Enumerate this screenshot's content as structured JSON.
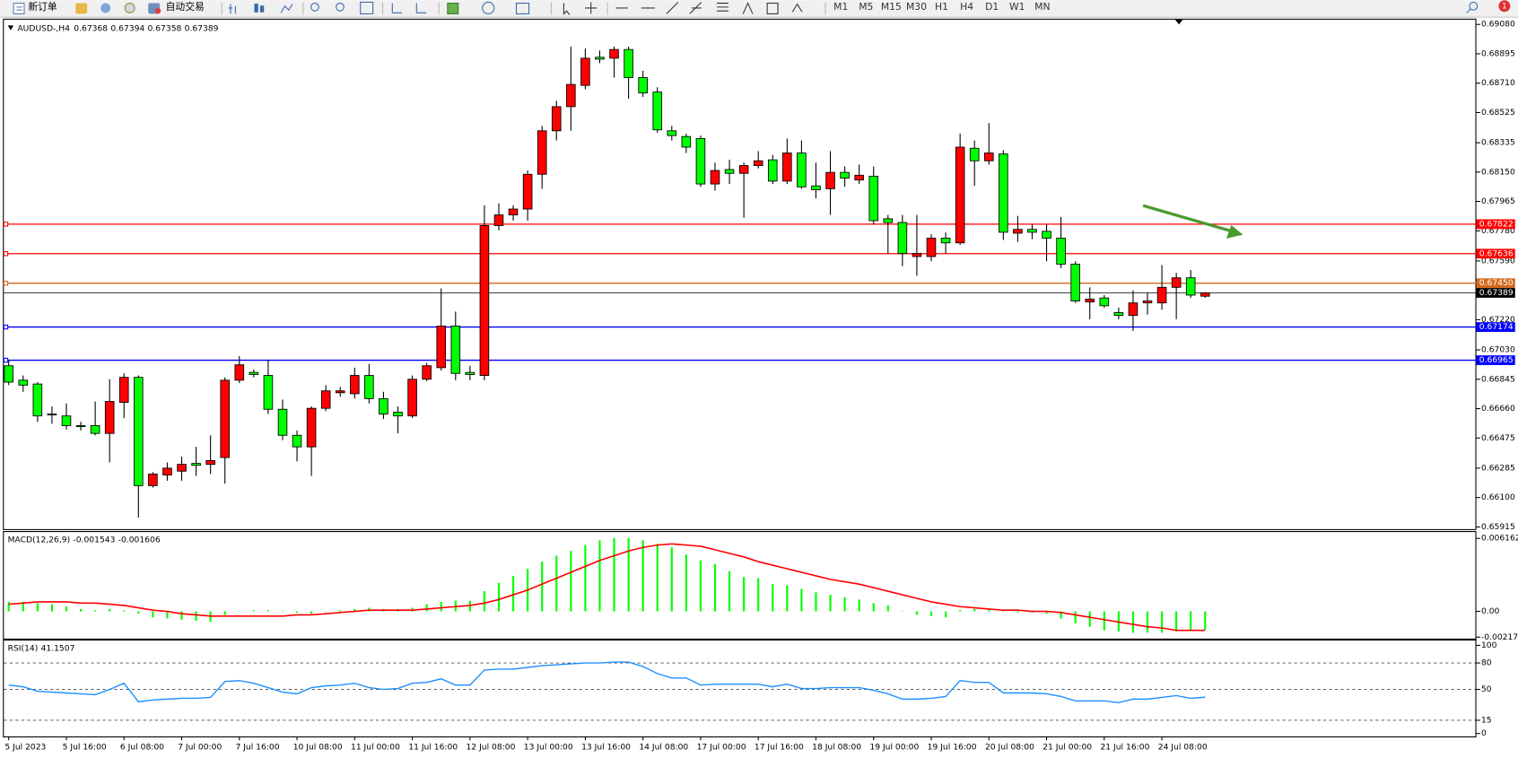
{
  "toolbar": {
    "new_order": "新订单",
    "auto_trading": "自动交易",
    "timeframes": [
      "M1",
      "M5",
      "M15",
      "M30",
      "H1",
      "H4",
      "D1",
      "W1",
      "MN"
    ],
    "notification_count": 1
  },
  "chart_data": [
    {
      "type": "candlestick",
      "title": "AUDUSD-,H4",
      "up_color": "#ff0000",
      "down_color": "#00ff00",
      "categories": [
        "5 Jul 2023",
        null,
        null,
        null,
        "5 Jul 16:00",
        null,
        null,
        null,
        "6 Jul 08:00",
        null,
        null,
        null,
        "7 Jul 00:00",
        null,
        null,
        null,
        "7 Jul 16:00",
        null,
        null,
        null,
        "10 Jul 08:00",
        null,
        null,
        null,
        "11 Jul 00:00",
        null,
        null,
        null,
        "11 Jul 16:00",
        null,
        null,
        null,
        "12 Jul 08:00",
        null,
        null,
        null,
        "13 Jul 00:00",
        null,
        null,
        null,
        "13 Jul 16:00",
        null,
        null,
        null,
        "14 Jul 08:00",
        null,
        null,
        null,
        "17 Jul 00:00",
        null,
        null,
        null,
        "17 Jul 16:00",
        null,
        null,
        null,
        "18 Jul 08:00",
        null,
        null,
        null,
        "19 Jul 00:00",
        null,
        null,
        null,
        "19 Jul 16:00",
        null,
        null,
        null,
        "20 Jul 08:00",
        null,
        null,
        null,
        "21 Jul 00:00",
        null,
        null,
        null,
        "21 Jul 16:00",
        null,
        null,
        null,
        "24 Jul 08:00",
        null,
        null,
        null
      ],
      "open": [
        0.6693,
        0.66839,
        0.66815,
        0.66626,
        0.66614,
        0.66553,
        0.66553,
        0.66504,
        0.66699,
        0.66857,
        0.66175,
        0.66242,
        0.66266,
        0.66315,
        0.66309,
        0.66352,
        0.66839,
        0.66888,
        0.66869,
        0.66656,
        0.66492,
        0.66419,
        0.66662,
        0.6676,
        0.66754,
        0.66869,
        0.66723,
        0.66638,
        0.66614,
        0.66845,
        0.66918,
        0.6718,
        0.66888,
        0.66869,
        0.67813,
        0.6788,
        0.67917,
        0.68136,
        0.6841,
        0.68562,
        0.68696,
        0.68873,
        0.68867,
        0.68922,
        0.68745,
        0.68654,
        0.6841,
        0.68374,
        0.68361,
        0.68075,
        0.68166,
        0.68142,
        0.68191,
        0.68227,
        0.68093,
        0.6827,
        0.68063,
        0.68045,
        0.68148,
        0.681,
        0.68124,
        0.67856,
        0.67832,
        0.67618,
        0.67618,
        0.67734,
        0.67704,
        0.683,
        0.68221,
        0.68264,
        0.67765,
        0.67789,
        0.67777,
        0.67734,
        0.6757,
        0.67332,
        0.67357,
        0.67265,
        0.67247,
        0.67326,
        0.67326,
        0.67424,
        0.67484,
        0.67368
      ],
      "high": [
        0.66967,
        0.66869,
        0.66827,
        0.66674,
        0.66693,
        0.66577,
        0.66705,
        0.66845,
        0.66882,
        0.66869,
        0.6626,
        0.66321,
        0.66358,
        0.66419,
        0.66492,
        0.66857,
        0.66991,
        0.66906,
        0.66967,
        0.66717,
        0.66522,
        0.66674,
        0.66808,
        0.66796,
        0.66918,
        0.66942,
        0.66766,
        0.66674,
        0.66869,
        0.66948,
        0.67417,
        0.67271,
        0.6693,
        0.67941,
        0.67953,
        0.67941,
        0.6816,
        0.68441,
        0.68599,
        0.6894,
        0.68928,
        0.68916,
        0.6894,
        0.6894,
        0.68788,
        0.68684,
        0.68441,
        0.68392,
        0.6838,
        0.68209,
        0.68227,
        0.68209,
        0.68282,
        0.68258,
        0.68361,
        0.68349,
        0.68209,
        0.68282,
        0.68185,
        0.68197,
        0.68185,
        0.6788,
        0.6788,
        0.6788,
        0.67758,
        0.67771,
        0.68392,
        0.68349,
        0.68459,
        0.68288,
        0.67874,
        0.67819,
        0.67819,
        0.67868,
        0.67588,
        0.67424,
        0.67375,
        0.67296,
        0.67405,
        0.67393,
        0.67564,
        0.67515,
        0.67533,
        0.67394
      ],
      "low": [
        0.66808,
        0.66766,
        0.66577,
        0.66565,
        0.66528,
        0.66522,
        0.66492,
        0.66321,
        0.66601,
        0.65974,
        0.66163,
        0.66206,
        0.66206,
        0.66236,
        0.66248,
        0.66187,
        0.66821,
        0.66857,
        0.66626,
        0.66461,
        0.66327,
        0.66236,
        0.66644,
        0.66735,
        0.66723,
        0.66693,
        0.66595,
        0.66504,
        0.66601,
        0.66833,
        0.669,
        0.66839,
        0.66839,
        0.66839,
        0.67783,
        0.67844,
        0.67844,
        0.68045,
        0.68349,
        0.6841,
        0.68672,
        0.68836,
        0.68745,
        0.68611,
        0.68623,
        0.68398,
        0.68349,
        0.6827,
        0.68057,
        0.68033,
        0.68075,
        0.67862,
        0.68173,
        0.68075,
        0.68075,
        0.68045,
        0.67984,
        0.6788,
        0.68057,
        0.68075,
        0.67819,
        0.67637,
        0.67557,
        0.67497,
        0.67588,
        0.67637,
        0.67691,
        0.68063,
        0.68197,
        0.67722,
        0.6771,
        0.67728,
        0.67588,
        0.67545,
        0.67326,
        0.67223,
        0.67296,
        0.67223,
        0.67149,
        0.67253,
        0.67283,
        0.67223,
        0.67357,
        0.67358
      ],
      "close": [
        0.66827,
        0.66808,
        0.66614,
        0.6662,
        0.66553,
        0.66547,
        0.66504,
        0.66705,
        0.66857,
        0.66175,
        0.66248,
        0.66285,
        0.66309,
        0.66303,
        0.66333,
        0.66839,
        0.66936,
        0.66875,
        0.66656,
        0.66492,
        0.66419,
        0.66662,
        0.66772,
        0.66772,
        0.66869,
        0.66723,
        0.66626,
        0.66614,
        0.66845,
        0.6693,
        0.6718,
        0.66882,
        0.66875,
        0.67813,
        0.6788,
        0.67917,
        0.68136,
        0.6841,
        0.68562,
        0.68702,
        0.68867,
        0.68861,
        0.68922,
        0.68745,
        0.68648,
        0.68416,
        0.6838,
        0.68307,
        0.68075,
        0.6816,
        0.68142,
        0.68191,
        0.68221,
        0.68093,
        0.6827,
        0.68057,
        0.68039,
        0.68148,
        0.68112,
        0.6813,
        0.67844,
        0.67832,
        0.67637,
        0.67637,
        0.67734,
        0.67704,
        0.68307,
        0.68221,
        0.6827,
        0.67771,
        0.67789,
        0.67771,
        0.67734,
        0.6757,
        0.67338,
        0.6735,
        0.67308,
        0.67247,
        0.67326,
        0.67338,
        0.67424,
        0.67484,
        0.67375,
        0.67389
      ],
      "hlines": [
        {
          "value": 0.67822,
          "color": "#ff0000"
        },
        {
          "value": 0.67636,
          "color": "#ff0000"
        },
        {
          "value": 0.6745,
          "label": "0.67450",
          "color": "#d2691e"
        },
        {
          "value": 0.67174,
          "color": "#0000ff"
        },
        {
          "value": 0.66965,
          "color": "#0000ff"
        }
      ],
      "ylim": [
        0.65901,
        0.6911
      ],
      "yticks": [
        {
          "value": 0.6908,
          "label": "0.69080"
        },
        0.68895,
        {
          "value": 0.6871,
          "label": "0.68710"
        },
        0.68525,
        0.68335,
        {
          "value": 0.6815,
          "label": "0.68150"
        },
        0.67965,
        {
          "value": 0.6778,
          "label": "0.67780"
        },
        {
          "value": 0.6759,
          "label": "0.67590"
        },
        {
          "value": 0.6722,
          "label": "0.67220"
        },
        {
          "value": 0.6703,
          "label": "0.67030"
        },
        0.66845,
        {
          "value": 0.6666,
          "label": "0.66660"
        },
        0.66475,
        0.66285,
        {
          "value": 0.661,
          "label": "0.66100"
        },
        0.65915
      ]
    },
    {
      "type": "macd",
      "title": "MACD(12,26,9)",
      "color": "#00ff00",
      "signal_color": "#ff0000",
      "values": [
        0.0008,
        0.0008,
        0.0007,
        0.0006,
        0.0004,
        0.0002,
        0.0001,
        0.0002,
        0.0001,
        -0.0002,
        -0.0005,
        -0.0006,
        -0.0007,
        -0.0008,
        -0.0009,
        -0.0003,
        0.0,
        0.0001,
        0.0001,
        0.0,
        -0.0001,
        -0.0002,
        0.0,
        0.0001,
        0.0002,
        0.0003,
        0.0002,
        0.0002,
        0.0003,
        0.0006,
        0.0008,
        0.0009,
        0.0009,
        0.0017,
        0.0024,
        0.003,
        0.0036,
        0.0042,
        0.0047,
        0.0051,
        0.0056,
        0.006,
        0.0062,
        0.0062,
        0.006,
        0.0057,
        0.0054,
        0.0048,
        0.0043,
        0.004,
        0.0034,
        0.0029,
        0.0028,
        0.0023,
        0.0022,
        0.0019,
        0.0016,
        0.0014,
        0.0012,
        0.001,
        0.0007,
        0.0005,
        0.0,
        -0.0003,
        -0.0004,
        -0.0005,
        0.0001,
        0.0002,
        0.0002,
        0.0001,
        -0.0001,
        -0.0001,
        -0.0002,
        -0.0006,
        -0.001,
        -0.0013,
        -0.0016,
        -0.0017,
        -0.0018,
        -0.0018,
        -0.0018,
        -0.0017,
        -0.0016,
        -0.001543
      ],
      "signal": [
        0.0006,
        0.0007,
        0.0008,
        0.0008,
        0.0008,
        0.0007,
        0.0007,
        0.0006,
        0.0005,
        0.0003,
        0.0001,
        0.0,
        -0.0002,
        -0.0003,
        -0.0004,
        -0.0004,
        -0.0004,
        -0.0004,
        -0.0004,
        -0.0004,
        -0.0003,
        -0.0003,
        -0.0002,
        -0.0001,
        0.0,
        0.0001,
        0.0001,
        0.0001,
        0.0001,
        0.0002,
        0.0003,
        0.0004,
        0.0005,
        0.0007,
        0.001,
        0.0014,
        0.0018,
        0.0023,
        0.0028,
        0.0033,
        0.0038,
        0.0043,
        0.0047,
        0.0051,
        0.0054,
        0.0056,
        0.0057,
        0.0056,
        0.0055,
        0.0052,
        0.0049,
        0.0046,
        0.0042,
        0.0039,
        0.0036,
        0.0033,
        0.003,
        0.0027,
        0.0025,
        0.0023,
        0.002,
        0.0017,
        0.0014,
        0.0011,
        0.0008,
        0.0006,
        0.0004,
        0.0003,
        0.0002,
        0.0001,
        0.0001,
        0.0,
        0.0,
        -0.0001,
        -0.0003,
        -0.0005,
        -0.0007,
        -0.0009,
        -0.0011,
        -0.0013,
        -0.0014,
        -0.0016,
        -0.0016,
        -0.001606
      ],
      "ylim": [
        -0.0023,
        0.0067
      ],
      "yticks": [
        0.006162,
        {
          "value": 0,
          "label": "0.00"
        },
        -0.002178
      ]
    },
    {
      "type": "line",
      "title": "RSI(14)",
      "color": "#1e90ff",
      "values": [
        55,
        53,
        48,
        47,
        46,
        45,
        44,
        50,
        57,
        36,
        38,
        39,
        40,
        40,
        41,
        59,
        60,
        57,
        52,
        47,
        45,
        52,
        54,
        55,
        57,
        52,
        50,
        51,
        57,
        58,
        62,
        55,
        55,
        72,
        73,
        73,
        75,
        77,
        78,
        79,
        80,
        80,
        81,
        81,
        76,
        68,
        63,
        63,
        55,
        56,
        56,
        56,
        56,
        53,
        56,
        51,
        51,
        52,
        52,
        52,
        49,
        45,
        39,
        39,
        40,
        42,
        60,
        58,
        58,
        46,
        46,
        46,
        45,
        42,
        37,
        37,
        37,
        35,
        39,
        39,
        41,
        43,
        40,
        41.1507
      ],
      "ylim": [
        0,
        100
      ],
      "yticks": [
        100,
        80,
        50,
        15,
        0
      ]
    }
  ]
}
